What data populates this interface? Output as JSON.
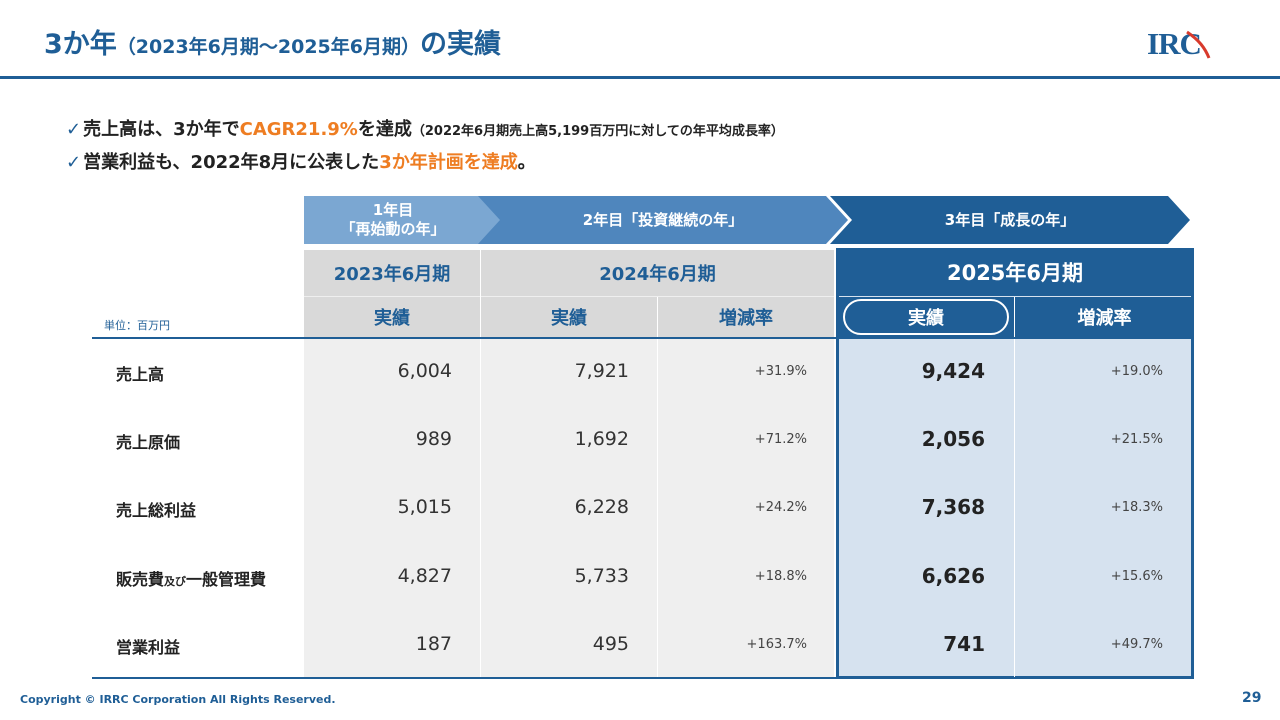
{
  "header": {
    "title_main": "3か年",
    "title_sub": "（2023年6月期～2025年6月期）",
    "title_end": "の実績",
    "logo_text": "IRC"
  },
  "bullets": [
    {
      "check": "✓",
      "pre": "売上高は、3か年で",
      "highlight": "CAGR21.9%",
      "post": "を達成",
      "note": "（2022年6月期売上高5,199百万円に対しての年平均成長率）"
    },
    {
      "check": "✓",
      "pre": "営業利益も、2022年8月に公表した",
      "highlight": "3か年計画を達成",
      "post": "。",
      "note": ""
    }
  ],
  "phases": [
    {
      "line1": "1年目",
      "line2": "「再始動の年」"
    },
    {
      "label": "2年目「投資継続の年」"
    },
    {
      "label": "3年目「成長の年」"
    }
  ],
  "table": {
    "unit": "単位：百万円",
    "years": [
      "2023年6月期",
      "2024年6月期",
      "2025年6月期"
    ],
    "sub_headers": {
      "actual": "実績",
      "change": "増減率"
    },
    "colors": {
      "primary": "#1f5e96",
      "accent": "#ee7d22"
    },
    "rows": [
      {
        "label": "売上高",
        "y2023": "6,004",
        "y2024": "7,921",
        "r2024": "+31.9%",
        "y2025": "9,424",
        "r2025": "+19.0%"
      },
      {
        "label": "売上原価",
        "y2023": "989",
        "y2024": "1,692",
        "r2024": "+71.2%",
        "y2025": "2,056",
        "r2025": "+21.5%"
      },
      {
        "label": "売上総利益",
        "y2023": "5,015",
        "y2024": "6,228",
        "r2024": "+24.2%",
        "y2025": "7,368",
        "r2025": "+18.3%"
      },
      {
        "label_pre": "販売費",
        "label_small": "及び",
        "label_post": "一般管理費",
        "y2023": "4,827",
        "y2024": "5,733",
        "r2024": "+18.8%",
        "y2025": "6,626",
        "r2025": "+15.6%"
      },
      {
        "label": "営業利益",
        "y2023": "187",
        "y2024": "495",
        "r2024": "+163.7%",
        "y2025": "741",
        "r2025": "+49.7%"
      }
    ]
  },
  "footer": {
    "copyright": "Copyright © IRRC Corporation All Rights Reserved.",
    "page": "29"
  }
}
